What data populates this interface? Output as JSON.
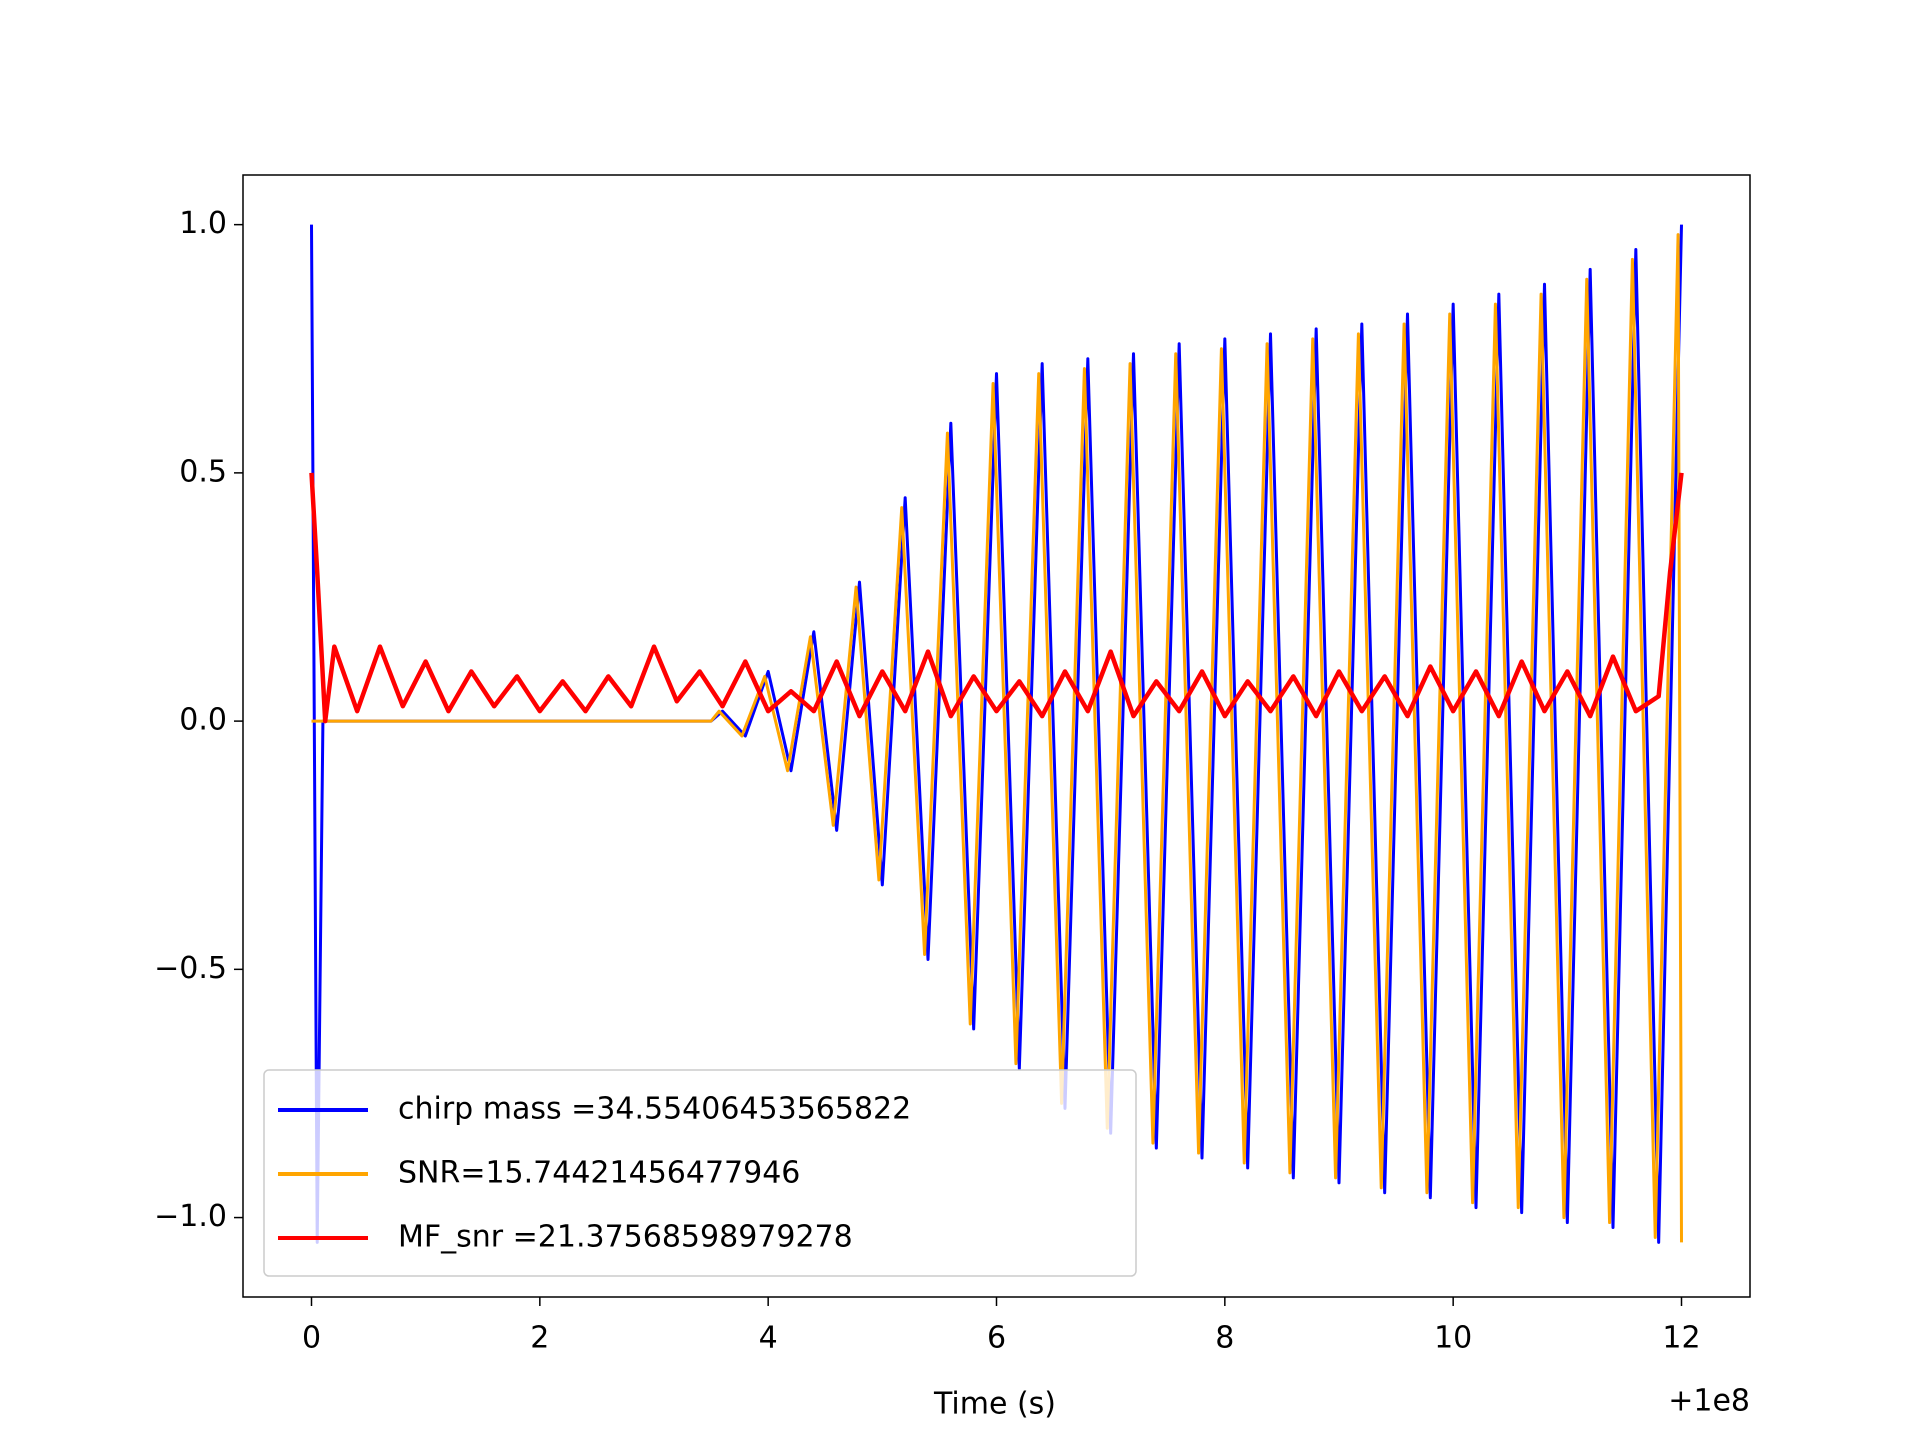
{
  "chart_data": {
    "type": "line",
    "xlabel": "Time (s)",
    "x_offset_label": "+1e8",
    "xlim": [
      -0.6,
      12.6
    ],
    "ylim": [
      -1.16,
      1.1
    ],
    "xticks": [
      0,
      2,
      4,
      6,
      8,
      10,
      12
    ],
    "yticks": [
      {
        "value": -1.0,
        "label": "−1.0"
      },
      {
        "value": -0.5,
        "label": "−0.5"
      },
      {
        "value": 0.0,
        "label": "0.0"
      },
      {
        "value": 0.5,
        "label": "0.5"
      },
      {
        "value": 1.0,
        "label": "1.0"
      }
    ],
    "legend": "lower left",
    "series": [
      {
        "name": "chirp mass =34.55406453565822",
        "color": "#0000ff",
        "x": [
          0,
          0.05,
          0.1,
          3.5,
          3.6,
          3.8,
          4.0,
          4.2,
          4.4,
          4.6,
          4.8,
          5.0,
          5.2,
          5.4,
          5.6,
          5.8,
          6.0,
          6.2,
          6.4,
          6.6,
          6.8,
          7.0,
          7.2,
          7.4,
          7.6,
          7.8,
          8.0,
          8.2,
          8.4,
          8.6,
          8.8,
          9.0,
          9.2,
          9.4,
          9.6,
          9.8,
          10.0,
          10.2,
          10.4,
          10.6,
          10.8,
          11.0,
          11.2,
          11.4,
          11.6,
          11.8,
          12.0
        ],
        "values": [
          1.0,
          -1.05,
          0,
          0,
          0.02,
          -0.03,
          0.1,
          -0.1,
          0.18,
          -0.22,
          0.28,
          -0.33,
          0.45,
          -0.48,
          0.6,
          -0.62,
          0.7,
          -0.7,
          0.72,
          -0.78,
          0.73,
          -0.83,
          0.74,
          -0.86,
          0.76,
          -0.88,
          0.77,
          -0.9,
          0.78,
          -0.92,
          0.79,
          -0.93,
          0.8,
          -0.95,
          0.82,
          -0.96,
          0.84,
          -0.98,
          0.86,
          -0.99,
          0.88,
          -1.01,
          0.91,
          -1.02,
          0.95,
          -1.05,
          1.0
        ]
      },
      {
        "name": "SNR=15.74421456477946",
        "color": "#ffa500",
        "x": [
          0,
          3.5,
          3.57,
          3.77,
          3.97,
          4.17,
          4.37,
          4.57,
          4.77,
          4.97,
          5.17,
          5.37,
          5.57,
          5.77,
          5.97,
          6.17,
          6.37,
          6.57,
          6.77,
          6.97,
          7.17,
          7.37,
          7.57,
          7.77,
          7.97,
          8.17,
          8.37,
          8.57,
          8.77,
          8.97,
          9.17,
          9.37,
          9.57,
          9.77,
          9.97,
          10.17,
          10.37,
          10.57,
          10.77,
          10.97,
          11.17,
          11.37,
          11.57,
          11.77,
          11.97,
          12.0
        ],
        "values": [
          0,
          0,
          0.02,
          -0.03,
          0.09,
          -0.1,
          0.17,
          -0.21,
          0.27,
          -0.32,
          0.43,
          -0.47,
          0.58,
          -0.61,
          0.68,
          -0.69,
          0.7,
          -0.77,
          0.71,
          -0.82,
          0.72,
          -0.85,
          0.74,
          -0.87,
          0.75,
          -0.89,
          0.76,
          -0.91,
          0.77,
          -0.92,
          0.78,
          -0.94,
          0.8,
          -0.95,
          0.82,
          -0.97,
          0.84,
          -0.98,
          0.86,
          -1.0,
          0.89,
          -1.01,
          0.93,
          -1.04,
          0.98,
          -1.05
        ]
      },
      {
        "name": "MF_snr =21.37568598979278",
        "color": "#ff0000",
        "x": [
          0,
          0.05,
          0.12,
          0.2,
          0.4,
          0.6,
          0.8,
          1.0,
          1.2,
          1.4,
          1.6,
          1.8,
          2.0,
          2.2,
          2.4,
          2.6,
          2.8,
          3.0,
          3.2,
          3.4,
          3.6,
          3.8,
          4.0,
          4.2,
          4.4,
          4.6,
          4.8,
          5.0,
          5.2,
          5.4,
          5.6,
          5.8,
          6.0,
          6.2,
          6.4,
          6.6,
          6.8,
          7.0,
          7.2,
          7.4,
          7.6,
          7.8,
          8.0,
          8.2,
          8.4,
          8.6,
          8.8,
          9.0,
          9.2,
          9.4,
          9.6,
          9.8,
          10.0,
          10.2,
          10.4,
          10.6,
          10.8,
          11.0,
          11.2,
          11.4,
          11.6,
          11.8,
          11.9,
          12.0
        ],
        "values": [
          0.5,
          0.3,
          0.0,
          0.15,
          0.02,
          0.15,
          0.03,
          0.12,
          0.02,
          0.1,
          0.03,
          0.09,
          0.02,
          0.08,
          0.02,
          0.09,
          0.03,
          0.15,
          0.04,
          0.1,
          0.03,
          0.12,
          0.02,
          0.06,
          0.02,
          0.12,
          0.01,
          0.1,
          0.02,
          0.14,
          0.01,
          0.09,
          0.02,
          0.08,
          0.01,
          0.1,
          0.02,
          0.14,
          0.01,
          0.08,
          0.02,
          0.1,
          0.01,
          0.08,
          0.02,
          0.09,
          0.01,
          0.1,
          0.02,
          0.09,
          0.01,
          0.11,
          0.02,
          0.1,
          0.01,
          0.12,
          0.02,
          0.1,
          0.01,
          0.13,
          0.02,
          0.05,
          0.3,
          0.5
        ]
      }
    ]
  }
}
